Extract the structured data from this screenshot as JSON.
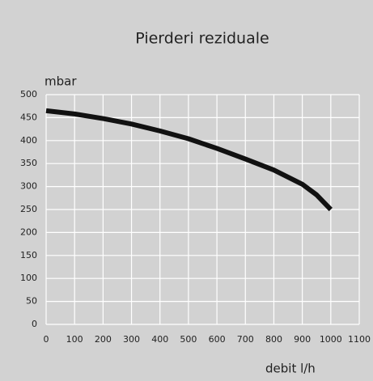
{
  "chart_data": {
    "type": "line",
    "title": "Pierderi reziduale",
    "y_label": "mbar",
    "x_label": "debit l/h",
    "x": [
      0,
      100,
      200,
      300,
      400,
      500,
      600,
      700,
      800,
      900,
      950,
      1000
    ],
    "series": [
      {
        "name": "Pierderi reziduale",
        "color": "#111111",
        "values": [
          465,
          458,
          448,
          436,
          421,
          404,
          383,
          360,
          336,
          305,
          282,
          250
        ]
      }
    ],
    "xlim": [
      0,
      1100
    ],
    "xticks": [
      0,
      100,
      200,
      300,
      400,
      500,
      600,
      700,
      800,
      900,
      1000,
      1100
    ],
    "ylim": [
      0,
      500
    ],
    "yticks": [
      0,
      50,
      100,
      150,
      200,
      250,
      300,
      350,
      400,
      450,
      500
    ],
    "grid": true
  }
}
